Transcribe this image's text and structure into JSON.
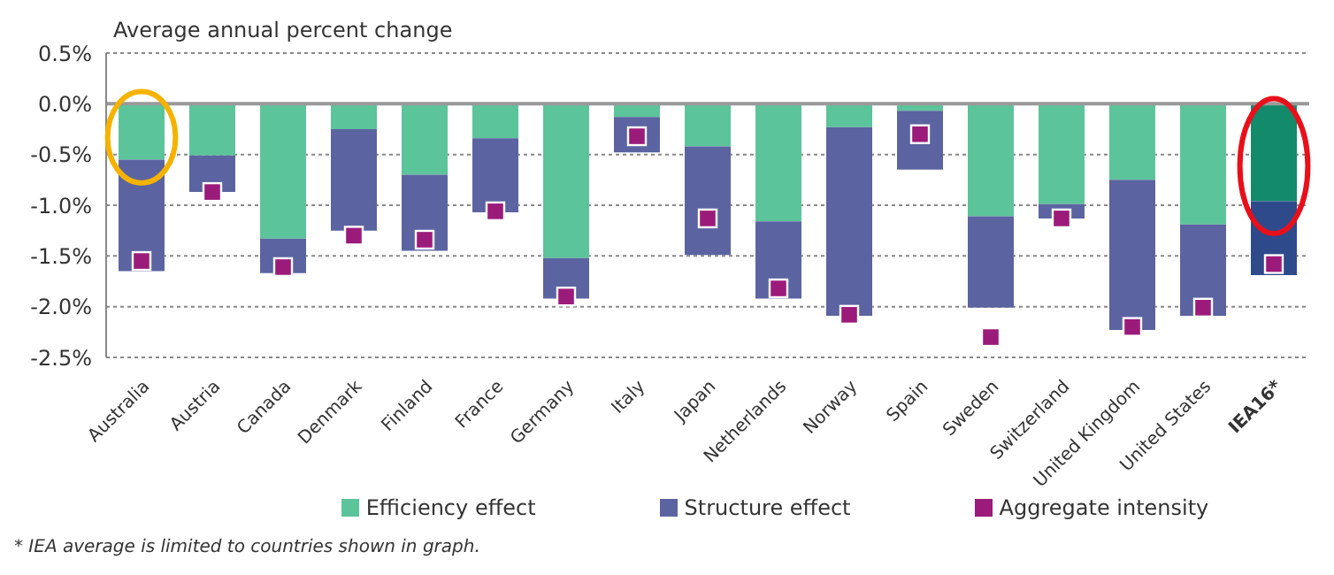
{
  "chart_data": {
    "type": "bar",
    "stacked": true,
    "ylabel": "Average annual percent change",
    "categories": [
      "Australia",
      "Austria",
      "Canada",
      "Denmark",
      "Finland",
      "France",
      "Germany",
      "Italy",
      "Japan",
      "Netherlands",
      "Norway",
      "Spain",
      "Sweden",
      "Switzerland",
      "United Kingdom",
      "United States",
      "IEA16*"
    ],
    "series": [
      {
        "name": "Efficiency effect",
        "color": "#5cc49a",
        "colors": [
          "#5cc49a",
          "#5cc49a",
          "#5cc49a",
          "#5cc49a",
          "#5cc49a",
          "#5cc49a",
          "#5cc49a",
          "#5cc49a",
          "#5cc49a",
          "#5cc49a",
          "#5cc49a",
          "#5cc49a",
          "#5cc49a",
          "#5cc49a",
          "#5cc49a",
          "#5cc49a",
          "#138a6a"
        ],
        "values": [
          -0.55,
          -0.51,
          -1.33,
          -0.25,
          -0.7,
          -0.34,
          -1.52,
          -0.13,
          -0.42,
          -1.16,
          -0.23,
          -0.07,
          -1.11,
          -0.99,
          -0.75,
          -1.19,
          -0.96
        ]
      },
      {
        "name": "Structure effect",
        "color": "#5b64a0",
        "colors": [
          "#5b64a0",
          "#5b64a0",
          "#5b64a0",
          "#5b64a0",
          "#5b64a0",
          "#5b64a0",
          "#5b64a0",
          "#5b64a0",
          "#5b64a0",
          "#5b64a0",
          "#5b64a0",
          "#5b64a0",
          "#5b64a0",
          "#5b64a0",
          "#5b64a0",
          "#5b64a0",
          "#2e4a8a"
        ],
        "values": [
          -1.1,
          -0.36,
          -0.34,
          -1.0,
          -0.75,
          -0.73,
          -0.4,
          -0.35,
          -1.07,
          -0.76,
          -1.86,
          -0.58,
          -0.9,
          -0.14,
          -1.48,
          -0.9,
          -0.73
        ]
      },
      {
        "name": "Aggregate intensity",
        "type": "scatter",
        "marker": "square",
        "color": "#9b1b7a",
        "values": [
          -1.55,
          -0.87,
          -1.61,
          -1.3,
          -1.34,
          -1.06,
          -1.9,
          -0.32,
          -1.13,
          -1.82,
          -2.08,
          -0.3,
          -2.3,
          -1.13,
          -2.2,
          -2.01,
          -1.58
        ]
      }
    ],
    "ylim": [
      -2.5,
      0.5
    ],
    "yticks": [
      {
        "value": 0.5,
        "label": "0.5%"
      },
      {
        "value": 0,
        "label": "0.0%"
      },
      {
        "value": -0.5,
        "label": "-0.5%"
      },
      {
        "value": -1,
        "label": "-1.0%"
      },
      {
        "value": -1.5,
        "label": "-1.5%"
      },
      {
        "value": -2,
        "label": "-2.0%"
      },
      {
        "value": -2.5,
        "label": "-2.5%"
      }
    ],
    "grid": "y",
    "ref_lines": [
      {
        "axis": "y",
        "value": 0,
        "color": "#999999"
      }
    ],
    "legend": "bottom",
    "annotations": [
      "* IEA average is limited to countries shown in graph."
    ]
  }
}
